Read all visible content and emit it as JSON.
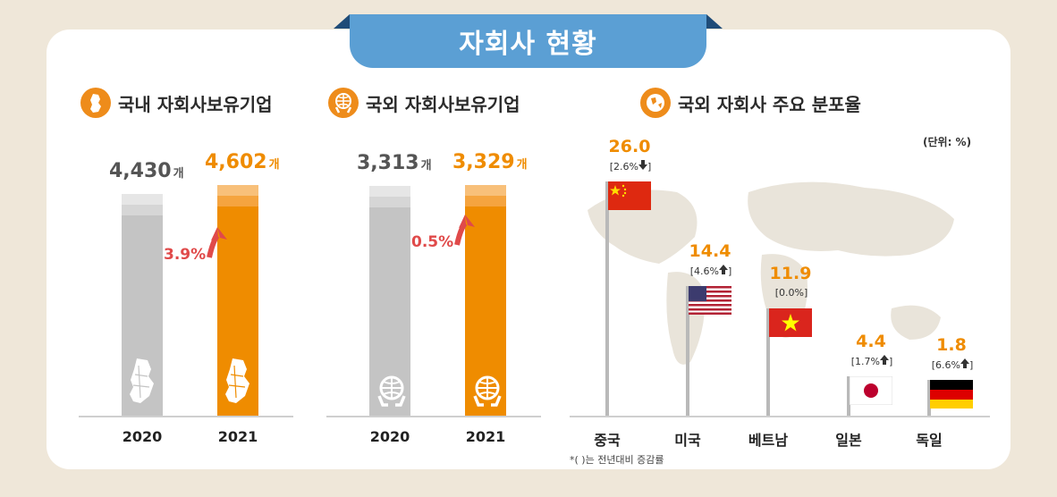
{
  "banner": {
    "title": "자회사 현황"
  },
  "sections": {
    "domestic": {
      "title": "국내 자회사보유기업"
    },
    "overseas": {
      "title": "국외 자회사보유기업"
    },
    "distribution": {
      "title": "국외 자회사 주요 분포율",
      "unit_note": "(단위: %)",
      "footnote": "*( )는 전년대비 증감률"
    }
  },
  "chart_data": [
    {
      "type": "bar",
      "title": "국내 자회사보유기업",
      "categories": [
        "2020",
        "2021"
      ],
      "values": [
        4430,
        4602
      ],
      "value_labels": [
        "4,430",
        "4,602"
      ],
      "unit": "개",
      "growth_label": "3.9%",
      "growth_direction": "up",
      "colors": [
        "#c4c4c4",
        "#ef8c00"
      ],
      "icon": "korea-map-icon",
      "ylim": [
        0,
        4602
      ]
    },
    {
      "type": "bar",
      "title": "국외 자회사보유기업",
      "categories": [
        "2020",
        "2021"
      ],
      "values": [
        3313,
        3329
      ],
      "value_labels": [
        "3,313",
        "3,329"
      ],
      "unit": "개",
      "growth_label": "0.5%",
      "growth_direction": "up",
      "colors": [
        "#c4c4c4",
        "#ef8c00"
      ],
      "icon": "globe-hands-icon",
      "ylim": [
        0,
        3329
      ]
    },
    {
      "type": "bar",
      "title": "국외 자회사 주요 분포율",
      "categories": [
        "중국",
        "미국",
        "베트남",
        "일본",
        "독일"
      ],
      "values": [
        26.0,
        14.4,
        11.9,
        4.4,
        1.8
      ],
      "value_labels": [
        "26.0",
        "14.4",
        "11.9",
        "4.4",
        "1.8"
      ],
      "changes": [
        "[2.6%",
        "[4.6%",
        "[0.0%]",
        "[1.7%",
        "[6.6%"
      ],
      "change_directions": [
        "down",
        "up",
        "none",
        "up",
        "up"
      ],
      "flags": [
        "china-flag-icon",
        "usa-flag-icon",
        "vietnam-flag-icon",
        "japan-flag-icon",
        "germany-flag-icon"
      ],
      "unit": "%",
      "value_color": "#ef8c00",
      "ylim": [
        0,
        26.0
      ]
    }
  ]
}
